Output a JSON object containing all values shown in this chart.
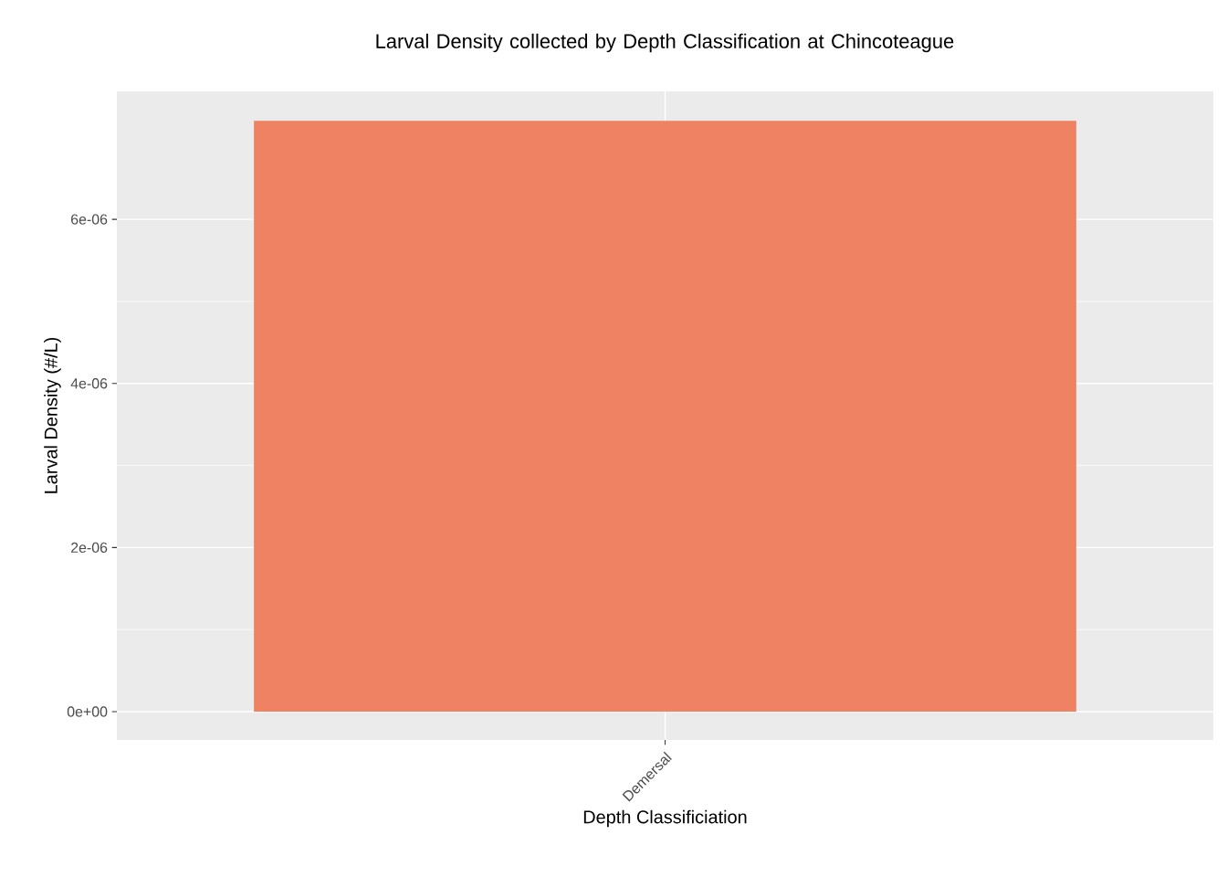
{
  "chart_data": {
    "type": "bar",
    "title": "Larval Density collected by Depth Classification at Chincoteague",
    "xlabel": "Depth Classificiation",
    "ylabel": "Larval Density (#/L)",
    "categories": [
      "Demersal"
    ],
    "values": [
      7.2e-06
    ],
    "color": "#EE8262",
    "ylim": [
      -3.45e-07,
      7.56e-06
    ],
    "yticks": [
      {
        "value": 0,
        "label": "0e+00"
      },
      {
        "value": 2e-06,
        "label": "2e-06"
      },
      {
        "value": 4e-06,
        "label": "4e-06"
      },
      {
        "value": 6e-06,
        "label": "6e-06"
      }
    ],
    "grid": true
  }
}
